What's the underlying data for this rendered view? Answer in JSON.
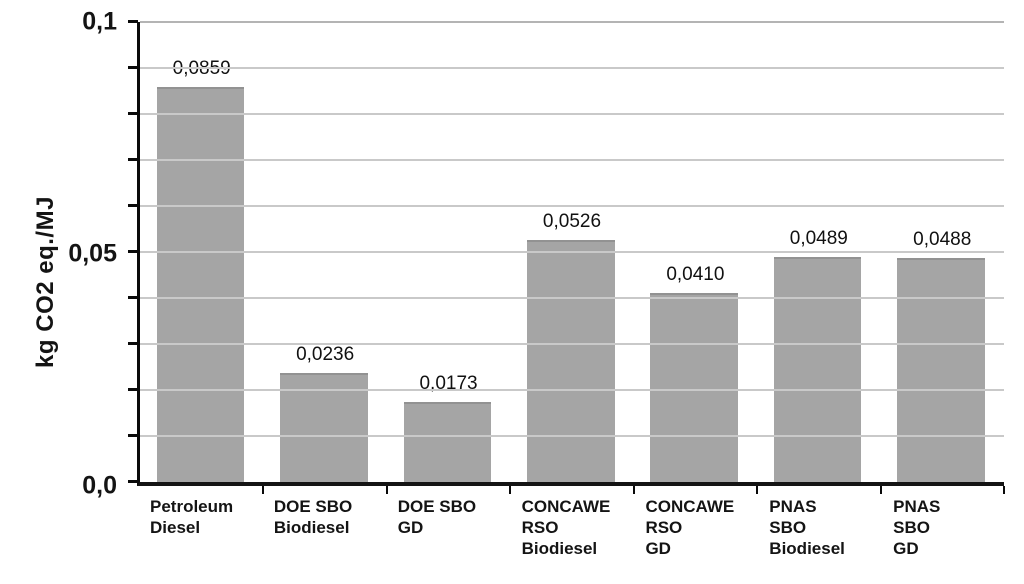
{
  "chart_data": {
    "type": "bar",
    "title": "",
    "xlabel": "",
    "ylabel": "kg CO2 eq./MJ",
    "ylim": [
      0,
      0.1
    ],
    "gridline_interval": 0.01,
    "grid": true,
    "legend": false,
    "decimal_separator": ",",
    "ytick_labels_top_to_bottom": [
      "0,1",
      "0,05",
      "0,0"
    ],
    "ytick_values": [
      0.1,
      0.05,
      0.0
    ],
    "categories": [
      "Petroleum Diesel",
      "DOE SBO Biodiesel",
      "DOE SBO GD",
      "CONCAWE RSO Biodiesel",
      "CONCAWE RSO GD",
      "PNAS SBO Biodiesel",
      "PNAS SBO GD"
    ],
    "category_label_lines": [
      [
        "Petroleum",
        "Diesel"
      ],
      [
        "DOE SBO",
        "Biodiesel"
      ],
      [
        "DOE SBO",
        "GD"
      ],
      [
        "CONCAWE",
        "RSO",
        "Biodiesel"
      ],
      [
        "CONCAWE",
        "RSO",
        "GD"
      ],
      [
        "PNAS",
        "SBO",
        "Biodiesel"
      ],
      [
        "PNAS",
        "SBO",
        "GD"
      ]
    ],
    "values": [
      0.0859,
      0.0236,
      0.0173,
      0.0526,
      0.041,
      0.0489,
      0.0488
    ],
    "value_labels": [
      "0,0859",
      "0,0236",
      "0,0173",
      "0,0526",
      "0,0410",
      "0,0489",
      "0,0488"
    ],
    "colors": {
      "bar_fill": "#a5a5a5",
      "bar_top_edge": "#929292",
      "gridline": "#c9c9c9",
      "axis": "#0a0a0a",
      "text": "#141414",
      "background": "#ffffff"
    }
  }
}
